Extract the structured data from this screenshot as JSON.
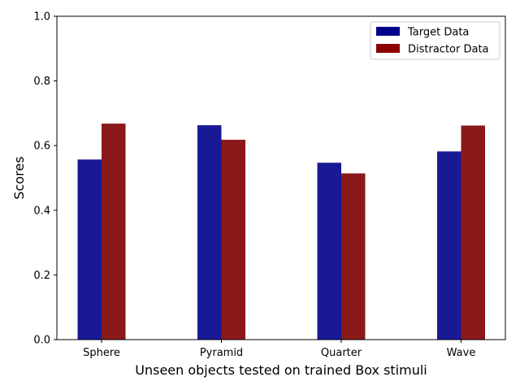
{
  "chart_data": {
    "type": "bar",
    "title": "",
    "xlabel": "Unseen objects tested on trained Box stimuli",
    "ylabel": "Scores",
    "ylim": [
      0,
      1.0
    ],
    "yticks": [
      "0.0",
      "0.2",
      "0.4",
      "0.6",
      "0.8",
      "1.0"
    ],
    "categories": [
      "Sphere",
      "Pyramid",
      "Quarter",
      "Wave"
    ],
    "series": [
      {
        "name": "Target Data",
        "values": [
          0.557,
          0.663,
          0.547,
          0.582
        ],
        "color": "#191996",
        "legend_color": "#00008b"
      },
      {
        "name": "Distractor Data",
        "values": [
          0.668,
          0.618,
          0.514,
          0.662
        ],
        "color": "#8b1919",
        "legend_color": "#8b0000"
      }
    ],
    "grid": false,
    "legend_position": "upper-right"
  }
}
